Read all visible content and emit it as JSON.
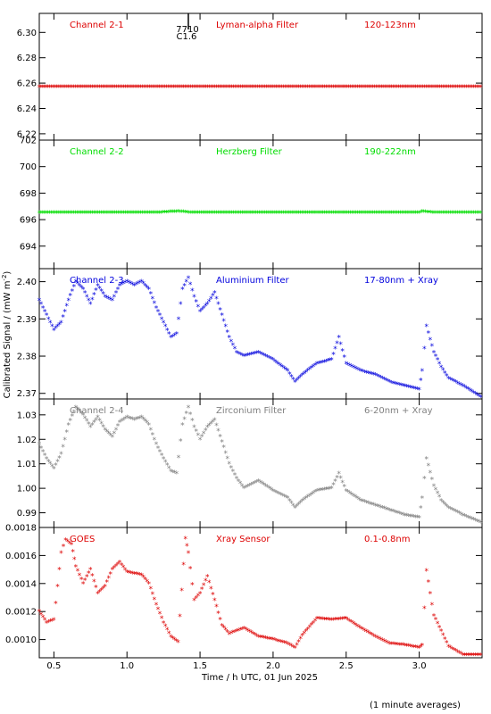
{
  "chart_data": [
    {
      "type": "scatter",
      "panel": "channel-2-1",
      "labels": {
        "channel": "Channel 2-1",
        "filter": "Lyman-alpha Filter",
        "band": "120-123nm"
      },
      "color": "#dd0000",
      "ylim": [
        6.215,
        6.315
      ],
      "yticks": [
        {
          "v": 6.22,
          "t": "6.22"
        },
        {
          "v": 6.24,
          "t": "6.24"
        },
        {
          "v": 6.26,
          "t": "6.26"
        },
        {
          "v": 6.28,
          "t": "6.28"
        },
        {
          "v": 6.3,
          "t": "6.30"
        }
      ],
      "series": [
        {
          "x": [
            0.4,
            0.6,
            0.8,
            1.0,
            1.2,
            1.4,
            1.6,
            1.8,
            2.0,
            2.2,
            2.4,
            2.6,
            2.8,
            3.0,
            3.2,
            3.42
          ],
          "y": [
            6.257,
            6.257,
            6.257,
            6.257,
            6.257,
            6.257,
            6.257,
            6.257,
            6.257,
            6.257,
            6.257,
            6.257,
            6.257,
            6.257,
            6.257,
            6.257
          ]
        }
      ],
      "annotation": {
        "x": 1.42,
        "top": "7710",
        "bottom": "C1.6"
      }
    },
    {
      "type": "scatter",
      "panel": "channel-2-2",
      "labels": {
        "channel": "Channel 2-2",
        "filter": "Herzberg Filter",
        "band": "190-222nm"
      },
      "color": "#00dd00",
      "ylim": [
        692.3,
        702.0
      ],
      "yticks": [
        {
          "v": 694,
          "t": "694"
        },
        {
          "v": 696,
          "t": "696"
        },
        {
          "v": 698,
          "t": "698"
        },
        {
          "v": 700,
          "t": "700"
        },
        {
          "v": 702,
          "t": "702"
        }
      ],
      "series": [
        {
          "x": [
            0.4,
            0.6,
            0.8,
            1.0,
            1.2,
            1.35,
            1.45,
            1.6,
            1.8,
            2.0,
            2.2,
            2.4,
            2.6,
            2.8,
            3.0,
            3.02,
            3.1,
            3.2,
            3.42
          ],
          "y": [
            696.5,
            696.5,
            696.5,
            696.5,
            696.5,
            696.6,
            696.5,
            696.5,
            696.5,
            696.5,
            696.5,
            696.5,
            696.5,
            696.5,
            696.5,
            696.6,
            696.5,
            696.5,
            696.5
          ]
        }
      ]
    },
    {
      "type": "scatter",
      "panel": "channel-2-3",
      "labels": {
        "channel": "Channel 2-3",
        "filter": "Aluminium Filter",
        "band": "17-80nm + Xray"
      },
      "color": "#0000dd",
      "ylim": [
        2.3685,
        2.4035
      ],
      "yticks": [
        {
          "v": 2.37,
          "t": "2.37"
        },
        {
          "v": 2.38,
          "t": "2.38"
        },
        {
          "v": 2.39,
          "t": "2.39"
        },
        {
          "v": 2.4,
          "t": "2.40"
        }
      ],
      "series": [
        {
          "x": [
            0.4,
            0.45,
            0.5,
            0.55,
            0.6,
            0.65,
            0.7,
            0.75,
            0.8,
            0.85,
            0.9,
            0.95,
            1.0,
            1.05,
            1.1,
            1.15,
            1.2,
            1.25,
            1.3,
            1.34,
            1.38,
            1.42,
            1.46,
            1.5,
            1.55,
            1.6,
            1.65,
            1.7,
            1.75,
            1.8,
            1.9,
            2.0,
            2.1,
            2.15,
            2.2,
            2.3,
            2.4,
            2.45,
            2.5,
            2.6,
            2.7,
            2.8,
            2.9,
            3.0,
            3.02,
            3.05,
            3.1,
            3.15,
            3.2,
            3.3,
            3.42
          ],
          "y": [
            2.395,
            2.391,
            2.387,
            2.389,
            2.395,
            2.4,
            2.398,
            2.394,
            2.399,
            2.396,
            2.395,
            2.399,
            2.4,
            2.399,
            2.4,
            2.398,
            2.393,
            2.389,
            2.385,
            2.386,
            2.398,
            2.401,
            2.396,
            2.392,
            2.394,
            2.397,
            2.391,
            2.385,
            2.381,
            2.38,
            2.381,
            2.379,
            2.376,
            2.373,
            2.375,
            2.378,
            2.379,
            2.385,
            2.378,
            2.376,
            2.375,
            2.373,
            2.372,
            2.371,
            2.376,
            2.388,
            2.381,
            2.377,
            2.374,
            2.372,
            2.369
          ]
        }
      ]
    },
    {
      "type": "scatter",
      "panel": "channel-2-4",
      "labels": {
        "channel": "Channel 2-4",
        "filter": "Zirconium Filter",
        "band": "6-20nm + Xray"
      },
      "color": "#808080",
      "ylim": [
        0.984,
        1.0365
      ],
      "yticks": [
        {
          "v": 0.99,
          "t": "0.99"
        },
        {
          "v": 1.0,
          "t": "1.00"
        },
        {
          "v": 1.01,
          "t": "1.01"
        },
        {
          "v": 1.02,
          "t": "1.02"
        },
        {
          "v": 1.03,
          "t": "1.03"
        }
      ],
      "series": [
        {
          "x": [
            0.4,
            0.45,
            0.5,
            0.55,
            0.6,
            0.65,
            0.7,
            0.75,
            0.8,
            0.85,
            0.9,
            0.95,
            1.0,
            1.05,
            1.1,
            1.15,
            1.2,
            1.25,
            1.3,
            1.34,
            1.38,
            1.42,
            1.46,
            1.5,
            1.55,
            1.6,
            1.65,
            1.7,
            1.75,
            1.8,
            1.9,
            2.0,
            2.1,
            2.15,
            2.2,
            2.3,
            2.4,
            2.45,
            2.5,
            2.6,
            2.7,
            2.8,
            2.9,
            3.0,
            3.02,
            3.05,
            3.1,
            3.15,
            3.2,
            3.3,
            3.42
          ],
          "y": [
            1.018,
            1.012,
            1.008,
            1.014,
            1.026,
            1.033,
            1.03,
            1.025,
            1.029,
            1.024,
            1.021,
            1.027,
            1.029,
            1.028,
            1.029,
            1.026,
            1.018,
            1.012,
            1.007,
            1.006,
            1.026,
            1.033,
            1.025,
            1.02,
            1.025,
            1.028,
            1.019,
            1.01,
            1.004,
            1.0,
            1.003,
            0.999,
            0.996,
            0.992,
            0.995,
            0.999,
            1.0,
            1.006,
            0.999,
            0.995,
            0.993,
            0.991,
            0.989,
            0.988,
            0.996,
            1.012,
            1.001,
            0.995,
            0.992,
            0.989,
            0.986
          ]
        }
      ]
    },
    {
      "type": "scatter",
      "panel": "goes",
      "labels": {
        "channel": "GOES",
        "filter": "Xray Sensor",
        "band": "0.1-0.8nm"
      },
      "color": "#dd0000",
      "ylim": [
        0.00087,
        0.0018
      ],
      "yticks": [
        {
          "v": 0.001,
          "t": "0.0010"
        },
        {
          "v": 0.0012,
          "t": "0.0012"
        },
        {
          "v": 0.0014,
          "t": "0.0014"
        },
        {
          "v": 0.0016,
          "t": "0.0016"
        },
        {
          "v": 0.0018,
          "t": "0.0018"
        }
      ],
      "series": [
        {
          "x": [
            0.4,
            0.45,
            0.5,
            0.55,
            0.58,
            0.62,
            0.65,
            0.7,
            0.75,
            0.8,
            0.85,
            0.9,
            0.95,
            1.0,
            1.05,
            1.1,
            1.15,
            1.2,
            1.25,
            1.3,
            1.35,
            1.4,
            1.42,
            1.46,
            1.5,
            1.55,
            1.6,
            1.65,
            1.7,
            1.8,
            1.9,
            2.0,
            2.1,
            2.15,
            2.2,
            2.3,
            2.4,
            2.5,
            2.6,
            2.7,
            2.8,
            2.9,
            3.0,
            3.02,
            3.05,
            3.1,
            3.2,
            3.3,
            3.42
          ],
          "y": [
            0.0012,
            0.00112,
            0.00114,
            0.00162,
            0.00171,
            0.00168,
            0.00152,
            0.0014,
            0.0015,
            0.00133,
            0.00138,
            0.0015,
            0.00155,
            0.00148,
            0.00147,
            0.00146,
            0.0014,
            0.00125,
            0.00112,
            0.00102,
            0.00098,
            0.00172,
            0.00162,
            0.00128,
            0.00133,
            0.00145,
            0.00128,
            0.0011,
            0.00104,
            0.00108,
            0.00102,
            0.001,
            0.00097,
            0.00094,
            0.00103,
            0.00115,
            0.00114,
            0.00115,
            0.00108,
            0.00102,
            0.00097,
            0.00096,
            0.00094,
            0.00096,
            0.00149,
            0.00117,
            0.00095,
            0.00089,
            0.00089
          ]
        }
      ]
    }
  ],
  "x_axis": {
    "xlim": [
      0.4,
      3.43
    ],
    "ticks": [
      {
        "v": 0.5,
        "t": "0.5"
      },
      {
        "v": 1.0,
        "t": "1.0"
      },
      {
        "v": 1.5,
        "t": "1.5"
      },
      {
        "v": 2.0,
        "t": "2.0"
      },
      {
        "v": 2.5,
        "t": "2.5"
      },
      {
        "v": 3.0,
        "t": "3.0"
      }
    ],
    "label": "Time / h UTC, 01 Jun 2025"
  },
  "y_axis": {
    "label": "Calibrated Signal / (mW m",
    "label_sup": "-2",
    "label_end": ")"
  },
  "footnote": "(1 minute averages)"
}
